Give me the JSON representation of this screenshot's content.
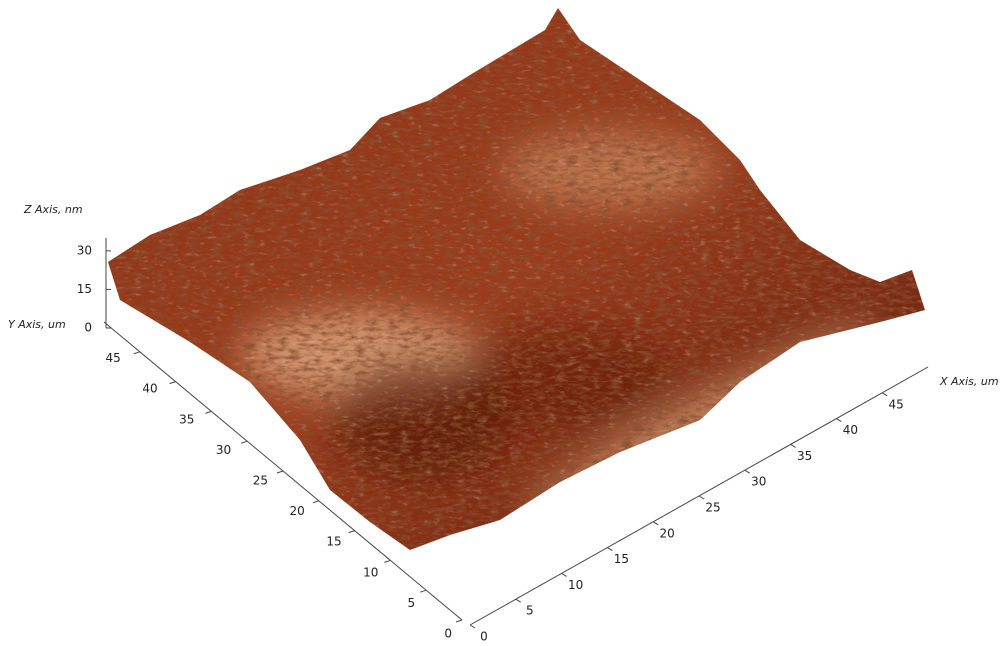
{
  "chart_data": {
    "type": "surface3d",
    "x_label": "X Axis, um",
    "y_label": "Y Axis, um",
    "z_label": "Z Axis, nm",
    "xlim": [
      0,
      50
    ],
    "xticks": [
      0,
      5,
      10,
      15,
      20,
      25,
      30,
      35,
      40,
      45
    ],
    "ylim": [
      0,
      50
    ],
    "yticks": [
      0,
      5,
      10,
      15,
      20,
      25,
      30,
      35,
      40,
      45
    ],
    "zlim": [
      0,
      35
    ],
    "zticks": [
      0,
      15,
      30
    ]
  }
}
